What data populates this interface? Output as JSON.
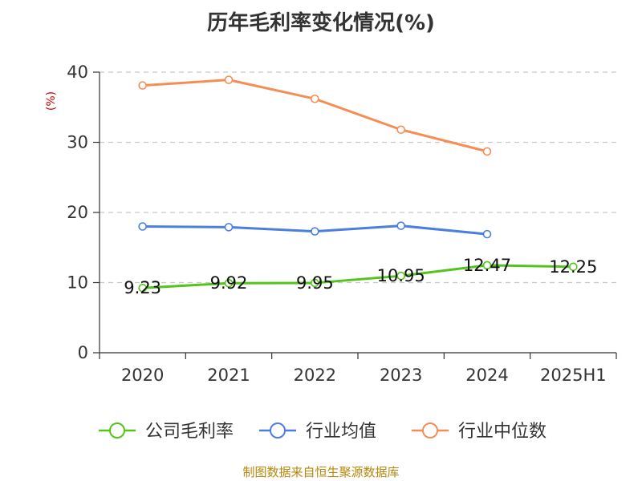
{
  "chart_data": {
    "type": "line",
    "title": "历年毛利率变化情况(%)",
    "ylabel": "(%)",
    "ylim": [
      0,
      40
    ],
    "yticks": [
      0,
      10,
      20,
      30,
      40
    ],
    "categories": [
      "2020",
      "2021",
      "2022",
      "2023",
      "2024",
      "2025H1"
    ],
    "grid": true,
    "legend_position": "bottom",
    "series": [
      {
        "name": "公司毛利率",
        "color": "#52c41a",
        "values": [
          9.23,
          9.92,
          9.95,
          10.95,
          12.47,
          12.25
        ],
        "labels": [
          "9.23",
          "9.92",
          "9.95",
          "10.95",
          "12.47",
          "12.25"
        ]
      },
      {
        "name": "行业均值",
        "color": "#4a7fe0",
        "values": [
          18.0,
          17.9,
          17.3,
          18.1,
          16.9,
          null
        ]
      },
      {
        "name": "行业中位数",
        "color": "#f58d54",
        "values": [
          38.1,
          38.9,
          36.2,
          31.8,
          28.7,
          null
        ]
      }
    ]
  },
  "footer": {
    "source": "制图数据来自恒生聚源数据库"
  }
}
